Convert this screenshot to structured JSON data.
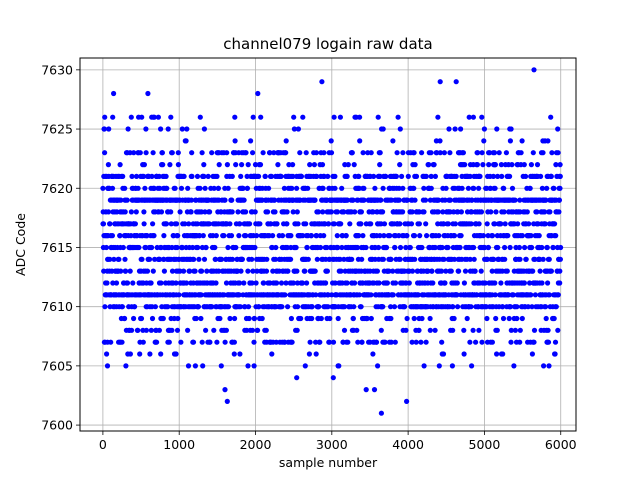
{
  "chart_data": {
    "type": "scatter",
    "title": "channel079 logain raw data",
    "xlabel": "sample number",
    "ylabel": "ADC Code",
    "xlim": [
      -300,
      6200
    ],
    "ylim": [
      7599.5,
      7631
    ],
    "xticks": [
      0,
      1000,
      2000,
      3000,
      4000,
      5000,
      6000
    ],
    "yticks": [
      7600,
      7605,
      7610,
      7615,
      7620,
      7625,
      7630
    ],
    "grid": true,
    "marker_color": "#0000ff",
    "x_count": 6000,
    "core_range": [
      7611,
      7619
    ],
    "outliers": [
      {
        "x": 60,
        "y": 7605
      },
      {
        "x": 140,
        "y": 7628
      },
      {
        "x": 590,
        "y": 7628
      },
      {
        "x": 1600,
        "y": 7603
      },
      {
        "x": 1630,
        "y": 7602
      },
      {
        "x": 2030,
        "y": 7628
      },
      {
        "x": 2870,
        "y": 7629
      },
      {
        "x": 3020,
        "y": 7604
      },
      {
        "x": 3650,
        "y": 7601
      },
      {
        "x": 3980,
        "y": 7602
      },
      {
        "x": 4420,
        "y": 7629
      },
      {
        "x": 4630,
        "y": 7629
      },
      {
        "x": 5650,
        "y": 7630
      },
      {
        "x": 5920,
        "y": 7606
      },
      {
        "x": 3450,
        "y": 7603
      },
      {
        "x": 3560,
        "y": 7603
      },
      {
        "x": 3600,
        "y": 7605
      },
      {
        "x": 2540,
        "y": 7604
      },
      {
        "x": 960,
        "y": 7606
      },
      {
        "x": 4580,
        "y": 7605
      }
    ]
  }
}
